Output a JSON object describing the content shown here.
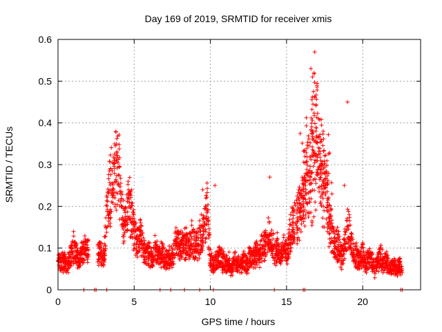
{
  "chart_data": {
    "type": "scatter",
    "title": "Day 169 of 2019, SRMTID for receiver xmis",
    "xlabel": "GPS time / hours",
    "ylabel": "SRMTID / TECUs",
    "xlim": [
      0,
      23.8
    ],
    "ylim": [
      0,
      0.6
    ],
    "x_ticks": [
      0,
      5,
      10,
      15,
      20
    ],
    "x_tick_labels": [
      "0",
      "5",
      "10",
      "15",
      "20"
    ],
    "y_ticks": [
      0,
      0.1,
      0.2,
      0.3,
      0.4,
      0.5,
      0.6
    ],
    "y_tick_labels": [
      "0",
      "0.1",
      "0.2",
      "0.3",
      "0.4",
      "0.5",
      "0.6"
    ],
    "grid": true,
    "marker": "+",
    "marker_color": "#ff0000",
    "series": [
      {
        "name": "SRMTID xmis",
        "x": [
          0.0,
          0.2,
          0.4,
          0.6,
          0.8,
          1.0,
          1.2,
          1.4,
          1.6,
          1.8,
          2.0,
          2.6,
          2.8,
          3.0,
          3.2,
          3.4,
          3.6,
          3.8,
          4.0,
          4.2,
          4.4,
          4.6,
          4.8,
          5.0,
          5.2,
          5.4,
          5.6,
          5.8,
          6.0,
          6.2,
          6.4,
          6.6,
          6.8,
          7.0,
          7.2,
          7.4,
          7.6,
          7.8,
          8.0,
          8.2,
          8.4,
          8.6,
          8.8,
          9.0,
          9.2,
          9.4,
          9.6,
          9.8,
          10.0,
          10.2,
          10.4,
          10.6,
          10.8,
          11.0,
          11.2,
          11.4,
          11.6,
          11.8,
          12.0,
          12.2,
          12.4,
          12.6,
          12.8,
          13.0,
          13.2,
          13.4,
          13.6,
          13.8,
          14.0,
          14.2,
          14.4,
          14.6,
          14.8,
          15.0,
          15.2,
          15.4,
          15.6,
          15.8,
          16.0,
          16.2,
          16.4,
          16.6,
          16.8,
          17.0,
          17.2,
          17.4,
          17.6,
          17.8,
          18.0,
          18.2,
          18.4,
          18.6,
          18.8,
          19.0,
          19.2,
          19.4,
          19.6,
          19.8,
          20.0,
          20.2,
          20.4,
          20.6,
          20.8,
          21.0,
          21.2,
          21.4,
          21.6,
          21.8,
          22.0,
          22.2,
          22.4,
          22.6
        ],
        "y": [
          0.08,
          0.06,
          0.07,
          0.06,
          0.08,
          0.1,
          0.09,
          0.07,
          0.09,
          0.1,
          0.09,
          0.08,
          0.09,
          0.07,
          0.19,
          0.24,
          0.26,
          0.28,
          0.29,
          0.17,
          0.15,
          0.21,
          0.19,
          0.13,
          0.12,
          0.13,
          0.1,
          0.08,
          0.09,
          0.07,
          0.1,
          0.08,
          0.09,
          0.07,
          0.08,
          0.07,
          0.09,
          0.12,
          0.1,
          0.11,
          0.11,
          0.1,
          0.12,
          0.1,
          0.11,
          0.13,
          0.15,
          0.2,
          0.07,
          0.06,
          0.07,
          0.08,
          0.07,
          0.06,
          0.07,
          0.05,
          0.07,
          0.06,
          0.06,
          0.07,
          0.06,
          0.08,
          0.07,
          0.09,
          0.08,
          0.11,
          0.1,
          0.13,
          0.12,
          0.09,
          0.1,
          0.08,
          0.1,
          0.09,
          0.12,
          0.15,
          0.17,
          0.19,
          0.21,
          0.24,
          0.27,
          0.3,
          0.4,
          0.36,
          0.32,
          0.28,
          0.24,
          0.17,
          0.13,
          0.1,
          0.11,
          0.08,
          0.1,
          0.15,
          0.12,
          0.09,
          0.08,
          0.07,
          0.09,
          0.06,
          0.08,
          0.07,
          0.05,
          0.07,
          0.08,
          0.06,
          0.07,
          0.05,
          0.06,
          0.05,
          0.06,
          0.05
        ],
        "outliers": [
          {
            "x": 16.85,
            "y": 0.57
          },
          {
            "x": 16.6,
            "y": 0.53
          },
          {
            "x": 16.7,
            "y": 0.51
          },
          {
            "x": 17.0,
            "y": 0.49
          },
          {
            "x": 19.0,
            "y": 0.45
          },
          {
            "x": 17.1,
            "y": 0.41
          },
          {
            "x": 13.9,
            "y": 0.27
          },
          {
            "x": 18.8,
            "y": 0.25
          },
          {
            "x": 10.3,
            "y": 0.25
          },
          {
            "x": 9.5,
            "y": 0.24
          }
        ],
        "zero_values_x": [
          1.7,
          2.4,
          2.5,
          3.2,
          6.7,
          7.4,
          8.3,
          9.3,
          10.2,
          14.2,
          16.1,
          16.2,
          22.5,
          22.6
        ]
      }
    ]
  }
}
